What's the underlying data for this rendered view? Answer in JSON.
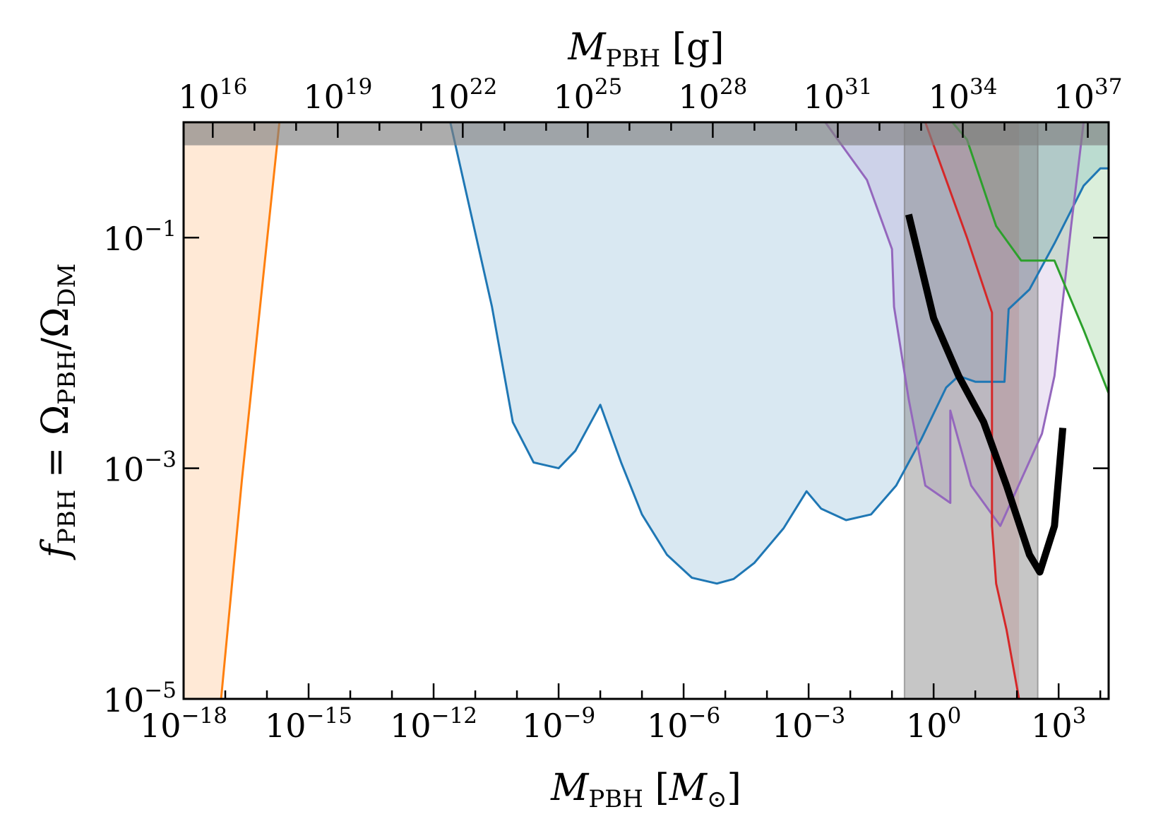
{
  "chart_data": {
    "type": "area",
    "xscale": "log",
    "yscale": "log",
    "xlim_exp": [
      -18,
      4.2
    ],
    "ylim_exp": [
      -5,
      0
    ],
    "xlabel": "M_PBH [M_⊙]",
    "ylabel": "f_PBH = Ω_PBH/Ω_DM",
    "top_xlabel": "M_PBH [g]",
    "x_ticks": [
      {
        "base": "10",
        "exp": "−18",
        "value": -18
      },
      {
        "base": "10",
        "exp": "−15",
        "value": -15
      },
      {
        "base": "10",
        "exp": "−12",
        "value": -12
      },
      {
        "base": "10",
        "exp": "−9",
        "value": -9
      },
      {
        "base": "10",
        "exp": "−6",
        "value": -6
      },
      {
        "base": "10",
        "exp": "−3",
        "value": -3
      },
      {
        "base": "10",
        "exp": "0",
        "value": 0
      },
      {
        "base": "10",
        "exp": "3",
        "value": 3
      }
    ],
    "top_ticks": [
      {
        "base": "10",
        "exp": "16",
        "value": 16
      },
      {
        "base": "10",
        "exp": "19",
        "value": 19
      },
      {
        "base": "10",
        "exp": "22",
        "value": 22
      },
      {
        "base": "10",
        "exp": "25",
        "value": 25
      },
      {
        "base": "10",
        "exp": "28",
        "value": 28
      },
      {
        "base": "10",
        "exp": "31",
        "value": 31
      },
      {
        "base": "10",
        "exp": "34",
        "value": 34
      },
      {
        "base": "10",
        "exp": "37",
        "value": 37
      }
    ],
    "top_offset_exp": 33.3,
    "y_ticks": [
      {
        "base": "10",
        "exp": "−1",
        "value": -1
      },
      {
        "base": "10",
        "exp": "−3",
        "value": -3
      },
      {
        "base": "10",
        "exp": "−5",
        "value": -5
      }
    ],
    "gray_band": {
      "y_exp": [
        -0.2,
        0
      ],
      "color": "#808080"
    },
    "gray_vertical_band": {
      "x_exp": [
        -0.7,
        2.5
      ],
      "color": "#808080"
    },
    "series": [
      {
        "color": "#ff7f0e",
        "fill_to": "left",
        "points": [
          [
            -17.1,
            -5
          ],
          [
            -16.6,
            -3.1
          ],
          [
            -15.7,
            0
          ]
        ]
      },
      {
        "color": "#1f77b4",
        "fill_to": "top",
        "points": [
          [
            -11.6,
            0
          ],
          [
            -10.6,
            -1.6
          ],
          [
            -10.1,
            -2.6
          ],
          [
            -9.6,
            -2.95
          ],
          [
            -9.0,
            -3.0
          ],
          [
            -8.6,
            -2.85
          ],
          [
            -8.0,
            -2.45
          ],
          [
            -7.5,
            -2.95
          ],
          [
            -7.0,
            -3.4
          ],
          [
            -6.4,
            -3.75
          ],
          [
            -5.8,
            -3.95
          ],
          [
            -5.2,
            -4.0
          ],
          [
            -4.8,
            -3.96
          ],
          [
            -4.3,
            -3.82
          ],
          [
            -3.6,
            -3.52
          ],
          [
            -3.05,
            -3.2
          ],
          [
            -2.7,
            -3.35
          ],
          [
            -2.1,
            -3.45
          ],
          [
            -1.5,
            -3.4
          ],
          [
            -0.9,
            -3.15
          ],
          [
            -0.3,
            -2.75
          ],
          [
            0.3,
            -2.3
          ],
          [
            0.6,
            -2.2
          ],
          [
            1.0,
            -2.25
          ],
          [
            1.7,
            -2.25
          ],
          [
            1.8,
            -1.62
          ],
          [
            2.3,
            -1.45
          ],
          [
            2.9,
            -1.05
          ],
          [
            3.6,
            -0.55
          ],
          [
            4.0,
            -0.4
          ],
          [
            4.2,
            -0.4
          ]
        ]
      },
      {
        "color": "#9467bd",
        "fill_to": "top",
        "points": [
          [
            -2.6,
            0
          ],
          [
            -2.5,
            -0.05
          ],
          [
            -1.6,
            -0.5
          ],
          [
            -1.0,
            -1.1
          ],
          [
            -0.95,
            -1.6
          ],
          [
            -0.6,
            -2.4
          ],
          [
            -0.2,
            -3.15
          ],
          [
            0.4,
            -3.3
          ],
          [
            0.4,
            -2.5
          ],
          [
            0.9,
            -3.15
          ],
          [
            1.6,
            -3.5
          ],
          [
            2.6,
            -2.7
          ],
          [
            2.9,
            -2.2
          ],
          [
            3.3,
            -0.9
          ],
          [
            3.6,
            0
          ]
        ]
      },
      {
        "color": "#d62728",
        "fill_to": "top",
        "points": [
          [
            -0.2,
            0
          ],
          [
            0.8,
            -1.0
          ],
          [
            1.4,
            -1.65
          ],
          [
            1.4,
            -3.5
          ],
          [
            1.5,
            -4.0
          ],
          [
            1.75,
            -4.4
          ],
          [
            2.05,
            -5
          ]
        ]
      },
      {
        "color": "#2ca02c",
        "fill_to": "top",
        "points": [
          [
            0.45,
            0
          ],
          [
            0.8,
            -0.15
          ],
          [
            1.5,
            -0.9
          ],
          [
            2.1,
            -1.2
          ],
          [
            2.9,
            -1.2
          ],
          [
            3.6,
            -1.8
          ],
          [
            4.2,
            -2.35
          ]
        ]
      }
    ],
    "black_curve": {
      "color": "#000000",
      "points": [
        [
          -0.6,
          -0.8
        ],
        [
          0.0,
          -1.7
        ],
        [
          0.6,
          -2.2
        ],
        [
          1.2,
          -2.6
        ],
        [
          1.75,
          -3.15
        ],
        [
          2.3,
          -3.75
        ],
        [
          2.55,
          -3.9
        ],
        [
          2.9,
          -3.5
        ],
        [
          3.1,
          -2.65
        ]
      ]
    }
  }
}
